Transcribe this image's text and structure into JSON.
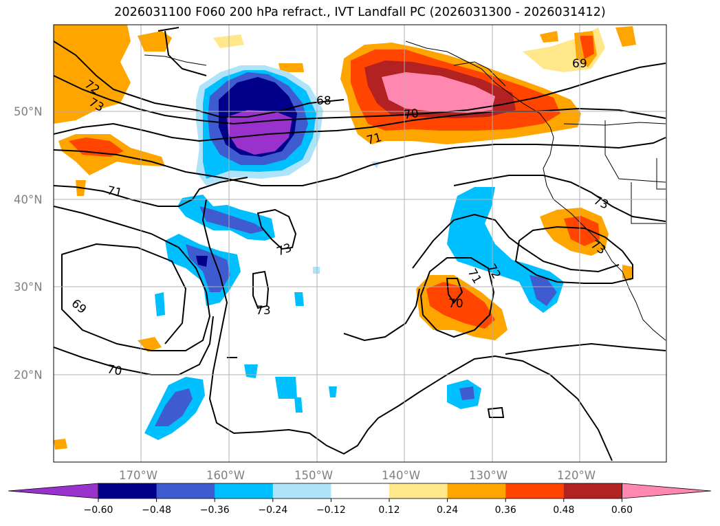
{
  "title": "2026031100 F060 200 hPa refract., IVT Landfall PC (2026031300 - 2026031412)",
  "lat_labels": [
    "50°N",
    "40°N",
    "30°N",
    "20°N"
  ],
  "lon_labels": [
    "170°W",
    "160°W",
    "150°W",
    "140°W",
    "130°W",
    "120°W"
  ],
  "contour_labels": [
    "72",
    "73",
    "68",
    "70",
    "71",
    "71",
    "69",
    "73",
    "73",
    "73",
    "73",
    "69",
    "70",
    "70",
    "71",
    "72"
  ],
  "colorbar": {
    "ticks": [
      "−0.60",
      "−0.48",
      "−0.36",
      "−0.24",
      "−0.12",
      "0.12",
      "0.24",
      "0.36",
      "0.48",
      "0.60"
    ],
    "colors": [
      "#9932cc",
      "#00008b",
      "#3e5cd0",
      "#00bfff",
      "#afe3fa",
      "#ffffff",
      "#ffe78a",
      "#ffa500",
      "#ff4500",
      "#b22222",
      "#ff87b0"
    ]
  },
  "colors": {
    "neg_strong": "#9932cc",
    "neg_2": "#00008b",
    "neg_3": "#3e5cd0",
    "neg_4": "#00bfff",
    "neg_5": "#afe3fa",
    "pos_1": "#ffe78a",
    "pos_2": "#ffa500",
    "pos_3": "#ff4500",
    "pos_4": "#b22222",
    "pos_strong": "#ff87b0"
  }
}
